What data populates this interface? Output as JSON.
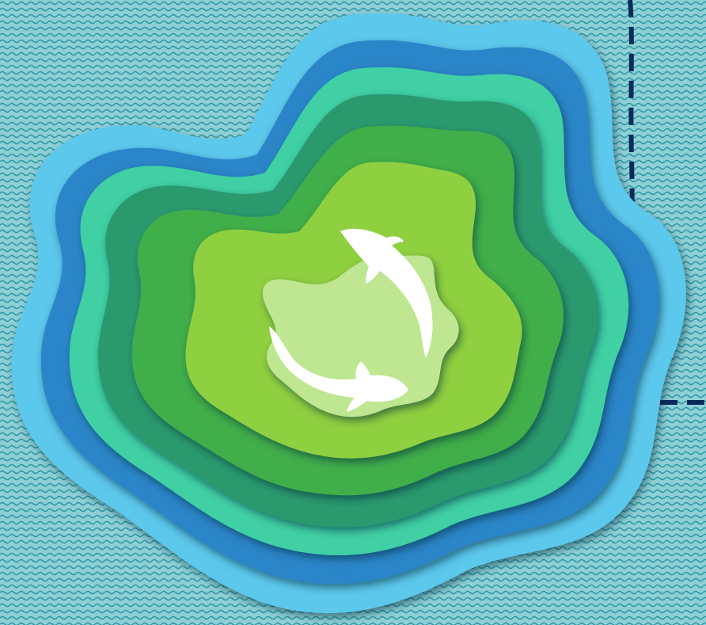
{
  "scene": {
    "background_color": "#8fd0d6",
    "pattern_color": "#2f9aa8",
    "border_color": "#0a2a5c",
    "subject": "paper-cut-layered-pond",
    "fish_count": 2,
    "fish_color": "#ffffff",
    "layer_colors": [
      "#5cc8ec",
      "#2a86c8",
      "#3fd0a4",
      "#2a9a6e",
      "#3fae4a",
      "#8fd040",
      "#bfe690"
    ],
    "shadow_color": "#0a2a3a"
  }
}
